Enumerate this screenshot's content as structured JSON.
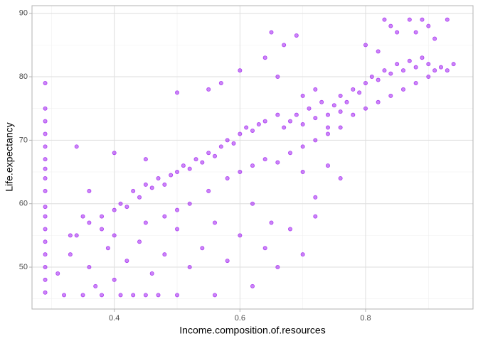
{
  "chart_data": {
    "type": "scatter",
    "x_label": "Income.composition.of.resources",
    "y_label": "Life.expectancy",
    "color": "#a020f0",
    "grid": true,
    "xlim": [
      0.269,
      0.971
    ],
    "ylim": [
      43.4,
      91.2
    ],
    "xticks": [
      0.4,
      0.6,
      0.8
    ],
    "yticks": [
      50,
      60,
      70,
      80,
      90
    ],
    "x_minor_ticks": [
      0.3,
      0.5,
      0.7,
      0.9
    ],
    "y_minor_ticks": [
      45,
      55,
      65,
      75,
      85
    ],
    "x": [
      0.29,
      0.29,
      0.29,
      0.29,
      0.29,
      0.29,
      0.29,
      0.29,
      0.29,
      0.29,
      0.29,
      0.29,
      0.29,
      0.29,
      0.29,
      0.29,
      0.29,
      0.32,
      0.35,
      0.38,
      0.41,
      0.43,
      0.45,
      0.47,
      0.5,
      0.56,
      0.31,
      0.33,
      0.34,
      0.36,
      0.37,
      0.39,
      0.4,
      0.42,
      0.44,
      0.46,
      0.48,
      0.5,
      0.52,
      0.54,
      0.56,
      0.58,
      0.6,
      0.62,
      0.64,
      0.66,
      0.68,
      0.7,
      0.72,
      0.35,
      0.38,
      0.33,
      0.36,
      0.38,
      0.4,
      0.41,
      0.42,
      0.43,
      0.44,
      0.45,
      0.46,
      0.47,
      0.48,
      0.49,
      0.5,
      0.51,
      0.52,
      0.53,
      0.54,
      0.55,
      0.56,
      0.57,
      0.58,
      0.59,
      0.6,
      0.61,
      0.62,
      0.63,
      0.64,
      0.4,
      0.45,
      0.48,
      0.5,
      0.52,
      0.55,
      0.58,
      0.6,
      0.62,
      0.64,
      0.66,
      0.68,
      0.7,
      0.72,
      0.74,
      0.76,
      0.78,
      0.8,
      0.82,
      0.84,
      0.68,
      0.69,
      0.7,
      0.71,
      0.72,
      0.73,
      0.74,
      0.75,
      0.76,
      0.77,
      0.78,
      0.79,
      0.7,
      0.72,
      0.66,
      0.67,
      0.74,
      0.76,
      0.8,
      0.81,
      0.82,
      0.83,
      0.84,
      0.85,
      0.86,
      0.87,
      0.88,
      0.89,
      0.9,
      0.91,
      0.92,
      0.93,
      0.94,
      0.86,
      0.88,
      0.9,
      0.83,
      0.84,
      0.85,
      0.87,
      0.88,
      0.89,
      0.9,
      0.91,
      0.93,
      0.8,
      0.82,
      0.65,
      0.69,
      0.67,
      0.5,
      0.55,
      0.57,
      0.6,
      0.64,
      0.66,
      0.7,
      0.74,
      0.76,
      0.65,
      0.62,
      0.72,
      0.45,
      0.4,
      0.34,
      0.36
    ],
    "values": [
      46,
      48,
      50,
      52,
      54,
      56,
      58,
      59.5,
      62,
      64,
      65.5,
      67,
      69,
      71,
      73,
      75,
      79,
      45.6,
      45.6,
      45.6,
      45.6,
      45.6,
      45.6,
      45.6,
      45.6,
      45.6,
      49,
      52,
      55,
      50,
      47,
      53,
      48,
      51,
      54,
      49,
      52,
      56,
      50,
      53,
      57,
      51,
      55,
      47,
      53,
      50,
      56,
      52,
      58,
      58,
      56,
      55,
      57,
      58,
      59,
      60,
      59.5,
      62,
      61,
      63,
      62.5,
      64,
      63,
      64.5,
      65,
      66,
      65.5,
      67,
      66.5,
      68,
      67.5,
      69,
      70,
      69.5,
      71,
      72,
      71.5,
      72.5,
      73,
      55,
      57,
      58,
      59,
      60,
      62,
      64,
      65,
      66,
      67,
      66.5,
      68,
      69,
      70,
      71,
      72,
      74,
      75,
      76,
      77,
      73,
      74,
      72.5,
      75,
      73.5,
      76,
      74,
      75.5,
      77,
      76,
      78,
      77.5,
      77,
      78,
      74,
      72,
      72,
      74.5,
      79,
      80,
      79.5,
      81,
      80.5,
      82,
      81,
      82.5,
      81.5,
      83,
      82,
      81,
      81.5,
      81,
      82,
      78,
      79,
      80,
      89,
      88,
      87,
      89,
      87,
      89,
      88,
      86,
      89,
      85,
      84,
      87,
      86.5,
      85,
      77.5,
      78,
      79,
      81,
      83,
      80,
      65,
      66,
      64,
      57,
      60,
      61,
      67,
      68,
      69,
      62
    ]
  }
}
